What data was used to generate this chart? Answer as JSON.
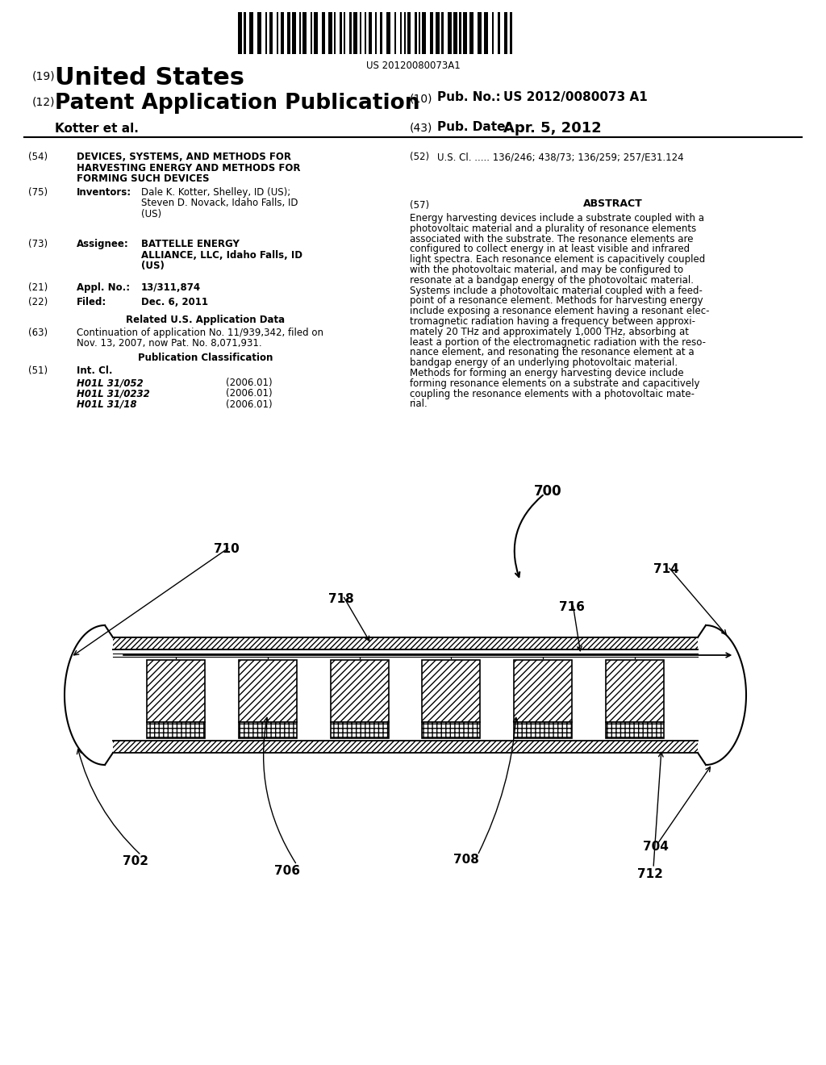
{
  "background_color": "#ffffff",
  "barcode_text": "US 20120080073A1",
  "header_19": "(19)",
  "header_19_text": "United States",
  "header_12": "(12)",
  "header_12_text": "Patent Application Publication",
  "header_10_label": "(10)",
  "header_10_text": "Pub. No.:",
  "header_10_value": "US 2012/0080073 A1",
  "header_kotter": "Kotter et al.",
  "header_43_label": "(43)",
  "header_43_text": "Pub. Date:",
  "header_43_value": "Apr. 5, 2012",
  "field_54_label": "(54)",
  "field_54_lines": [
    "DEVICES, SYSTEMS, AND METHODS FOR",
    "HARVESTING ENERGY AND METHODS FOR",
    "FORMING SUCH DEVICES"
  ],
  "field_52_label": "(52)",
  "field_52_text": "U.S. Cl. ..... 136/246; 438/73; 136/259; 257/E31.124",
  "field_75_label": "(75)",
  "field_75_title": "Inventors:",
  "field_75_lines": [
    "Dale K. Kotter, Shelley, ID (US);",
    "Steven D. Novack, Idaho Falls, ID",
    "(US)"
  ],
  "field_57_label": "(57)",
  "field_57_title": "ABSTRACT",
  "field_57_lines": [
    "Energy harvesting devices include a substrate coupled with a",
    "photovoltaic material and a plurality of resonance elements",
    "associated with the substrate. The resonance elements are",
    "configured to collect energy in at least visible and infrared",
    "light spectra. Each resonance element is capacitively coupled",
    "with the photovoltaic material, and may be configured to",
    "resonate at a bandgap energy of the photovoltaic material.",
    "Systems include a photovoltaic material coupled with a feed-",
    "point of a resonance element. Methods for harvesting energy",
    "include exposing a resonance element having a resonant elec-",
    "tromagnetic radiation having a frequency between approxi-",
    "mately 20 THz and approximately 1,000 THz, absorbing at",
    "least a portion of the electromagnetic radiation with the reso-",
    "nance element, and resonating the resonance element at a",
    "bandgap energy of an underlying photovoltaic material.",
    "Methods for forming an energy harvesting device include",
    "forming resonance elements on a substrate and capacitively",
    "coupling the resonance elements with a photovoltaic mate-",
    "rial."
  ],
  "field_73_label": "(73)",
  "field_73_title": "Assignee:",
  "field_73_lines": [
    "BATTELLE ENERGY",
    "ALLIANCE, LLC, Idaho Falls, ID",
    "(US)"
  ],
  "field_21_label": "(21)",
  "field_21_title": "Appl. No.:",
  "field_21_value": "13/311,874",
  "field_22_label": "(22)",
  "field_22_title": "Filed:",
  "field_22_value": "Dec. 6, 2011",
  "related_title": "Related U.S. Application Data",
  "field_63_label": "(63)",
  "field_63_lines": [
    "Continuation of application No. 11/939,342, filed on",
    "Nov. 13, 2007, now Pat. No. 8,071,931."
  ],
  "pub_class_title": "Publication Classification",
  "field_51_label": "(51)",
  "field_51_title": "Int. Cl.",
  "field_51_entries": [
    [
      "H01L 31/052",
      "(2006.01)"
    ],
    [
      "H01L 31/0232",
      "(2006.01)"
    ],
    [
      "H01L 31/18",
      "(2006.01)"
    ]
  ],
  "diagram_label_700": "700",
  "diagram_label_710": "710",
  "diagram_label_718": "718",
  "diagram_label_716": "716",
  "diagram_label_714": "714",
  "diagram_label_702": "702",
  "diagram_label_706": "706",
  "diagram_label_708": "708",
  "diagram_label_704": "704",
  "diagram_label_712": "712"
}
